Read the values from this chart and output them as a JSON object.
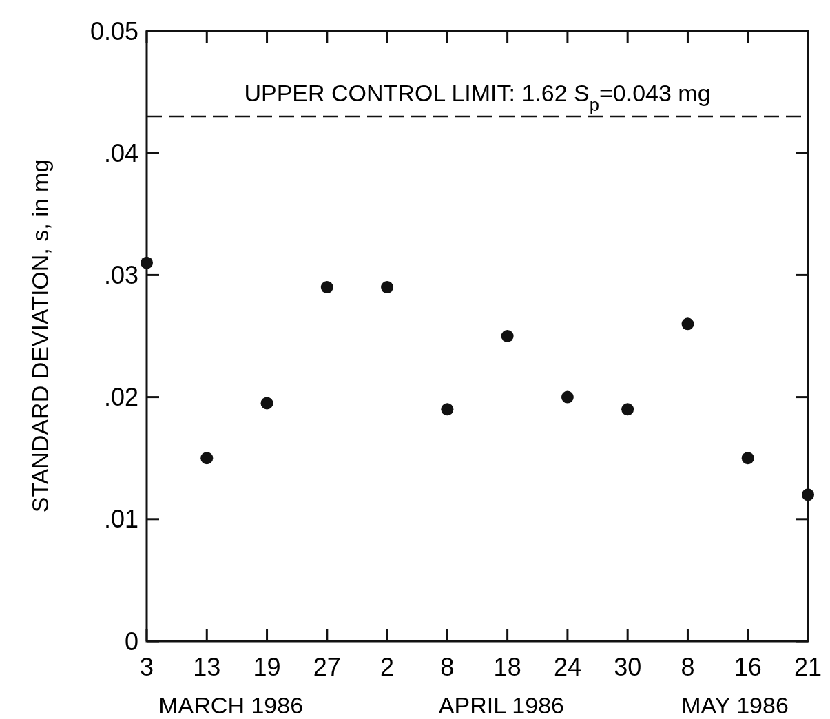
{
  "chart_data": {
    "type": "scatter",
    "ylabel": "STANDARD DEVIATION, s, in mg",
    "categories": [
      "3",
      "13",
      "19",
      "27",
      "2",
      "8",
      "18",
      "24",
      "30",
      "8",
      "16",
      "21"
    ],
    "series": [
      {
        "color": "#111111",
        "values": [
          0.031,
          0.015,
          0.0195,
          0.029,
          0.029,
          0.019,
          0.025,
          0.02,
          0.019,
          0.026,
          0.015,
          0.012
        ]
      }
    ],
    "ylim": [
      0,
      0.05
    ],
    "yticks": [
      {
        "value": 0,
        "label": "0"
      },
      {
        "value": 0.01,
        "label": ".01"
      },
      {
        "value": 0.02,
        "label": ".02"
      },
      {
        "value": 0.03,
        "label": ".03"
      },
      {
        "value": 0.04,
        "label": ".04"
      },
      {
        "value": 0.05,
        "label": "0.05"
      }
    ],
    "ref_lines": [
      {
        "axis": "y",
        "value": 0.043,
        "label": "UPPER CONTROL LIMIT: 1.62 S$_{p}$=0.043 mg",
        "color": "#111111",
        "line_style": "dashed"
      }
    ],
    "annotations": [
      "MARCH 1986",
      "APRIL 1986",
      "MAY 1986"
    ],
    "marker": "circle",
    "grid": false
  }
}
